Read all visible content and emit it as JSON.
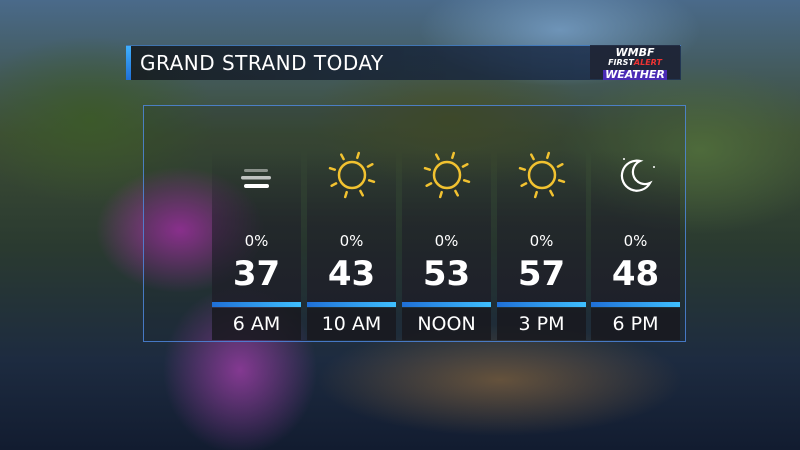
{
  "header": {
    "title": "GRAND STRAND TODAY"
  },
  "logo": {
    "line1": "WMBF",
    "line2a": "FIRST",
    "line2b": "ALERT",
    "line3": "WEATHER"
  },
  "colors": {
    "accent": "#3fb0ff",
    "sun": "#f2c230"
  },
  "forecast": [
    {
      "time": "6 AM",
      "precip": "0%",
      "temp": "37",
      "icon": "fog-icon"
    },
    {
      "time": "10 AM",
      "precip": "0%",
      "temp": "43",
      "icon": "sun-icon"
    },
    {
      "time": "NOON",
      "precip": "0%",
      "temp": "53",
      "icon": "sun-icon"
    },
    {
      "time": "3 PM",
      "precip": "0%",
      "temp": "57",
      "icon": "sun-icon"
    },
    {
      "time": "6 PM",
      "precip": "0%",
      "temp": "48",
      "icon": "moon-icon"
    }
  ]
}
